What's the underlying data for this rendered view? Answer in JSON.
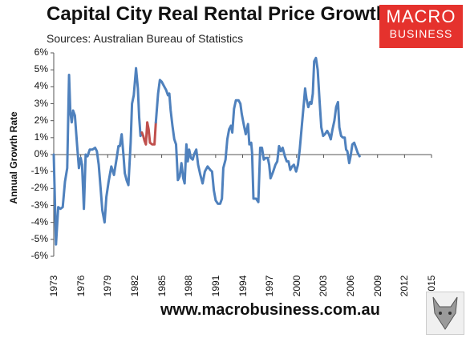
{
  "header": {
    "title": "Capital City Real Rental Price Growth",
    "subtitle": "Sources: Australian Bureau of Statistics"
  },
  "logo": {
    "line1": "MACRO",
    "line2": "BUSINESS"
  },
  "footer": {
    "url": "www.macrobusiness.com.au"
  },
  "colors": {
    "series": "#4f81bd",
    "highlight": "#c0504d",
    "brand": "#e5322d"
  },
  "chart_data": {
    "type": "line",
    "ylabel": "Annual Growth Rate",
    "xlabel": "",
    "xlim": [
      1973,
      2015
    ],
    "ylim": [
      -6,
      6
    ],
    "grid": false,
    "ytick_labels": [
      "6%",
      "5%",
      "4%",
      "3%",
      "2%",
      "1%",
      "0%",
      "-1%",
      "-2%",
      "-3%",
      "-4%",
      "-5%",
      "-6%"
    ],
    "yticks": [
      6,
      5,
      4,
      3,
      2,
      1,
      0,
      -1,
      -2,
      -3,
      -4,
      -5,
      -6
    ],
    "xtick_labels": [
      "1973",
      "1976",
      "1979",
      "1982",
      "1985",
      "1988",
      "1991",
      "1994",
      "1997",
      "2000",
      "2003",
      "2006",
      "2009",
      "2012",
      "2015"
    ],
    "xticks": [
      1973,
      1976,
      1979,
      1982,
      1985,
      1988,
      1991,
      1994,
      1997,
      2000,
      2003,
      2006,
      2009,
      2012,
      2015
    ],
    "series": [
      {
        "color": "#4f81bd",
        "points": [
          [
            1973.0,
            0.0
          ],
          [
            1973.25,
            -5.3
          ],
          [
            1973.5,
            -3.1
          ],
          [
            1973.75,
            -3.2
          ],
          [
            1974.0,
            -3.1
          ],
          [
            1974.25,
            -1.6
          ],
          [
            1974.5,
            -0.8
          ],
          [
            1974.7,
            4.7
          ],
          [
            1974.85,
            2.5
          ],
          [
            1975.0,
            1.9
          ],
          [
            1975.15,
            2.6
          ],
          [
            1975.35,
            2.3
          ],
          [
            1975.6,
            0.5
          ],
          [
            1975.8,
            -0.8
          ],
          [
            1976.0,
            -0.2
          ],
          [
            1976.15,
            -0.6
          ],
          [
            1976.35,
            -3.2
          ],
          [
            1976.55,
            0.0
          ],
          [
            1976.75,
            -0.1
          ],
          [
            1977.0,
            0.3
          ],
          [
            1977.3,
            0.3
          ],
          [
            1977.6,
            0.4
          ],
          [
            1977.8,
            0.2
          ],
          [
            1978.0,
            -0.6
          ],
          [
            1978.2,
            -1.9
          ],
          [
            1978.4,
            -3.3
          ],
          [
            1978.65,
            -4.0
          ],
          [
            1978.85,
            -2.5
          ],
          [
            1979.1,
            -1.6
          ],
          [
            1979.4,
            -0.7
          ],
          [
            1979.7,
            -1.2
          ],
          [
            1980.0,
            -0.2
          ],
          [
            1980.2,
            0.5
          ],
          [
            1980.35,
            0.5
          ],
          [
            1980.55,
            1.2
          ],
          [
            1980.75,
            0.0
          ],
          [
            1980.9,
            -1.1
          ],
          [
            1981.1,
            -1.5
          ],
          [
            1981.3,
            -1.8
          ],
          [
            1981.55,
            0.7
          ],
          [
            1981.7,
            3.0
          ],
          [
            1981.9,
            3.5
          ],
          [
            1982.15,
            5.1
          ],
          [
            1982.35,
            3.9
          ],
          [
            1982.5,
            2.2
          ],
          [
            1982.65,
            1.1
          ],
          [
            1982.8,
            1.3
          ]
        ]
      },
      {
        "color": "#c0504d",
        "points": [
          [
            1982.8,
            1.3
          ],
          [
            1982.95,
            1.1
          ],
          [
            1983.1,
            0.8
          ],
          [
            1983.25,
            0.6
          ],
          [
            1983.4,
            1.9
          ],
          [
            1983.55,
            1.5
          ],
          [
            1983.7,
            0.7
          ],
          [
            1983.95,
            0.6
          ],
          [
            1984.2,
            0.6
          ],
          [
            1984.35,
            1.9
          ]
        ]
      },
      {
        "color": "#4f81bd",
        "points": [
          [
            1984.35,
            1.9
          ],
          [
            1984.6,
            3.6
          ],
          [
            1984.8,
            4.4
          ],
          [
            1985.0,
            4.3
          ],
          [
            1985.3,
            4.0
          ],
          [
            1985.5,
            3.8
          ],
          [
            1985.7,
            3.5
          ],
          [
            1985.85,
            3.6
          ],
          [
            1986.0,
            2.6
          ],
          [
            1986.2,
            1.7
          ],
          [
            1986.4,
            0.9
          ],
          [
            1986.6,
            0.6
          ],
          [
            1986.8,
            -1.5
          ],
          [
            1987.0,
            -1.3
          ],
          [
            1987.2,
            -0.5
          ],
          [
            1987.4,
            -1.4
          ],
          [
            1987.55,
            -1.7
          ],
          [
            1987.75,
            0.6
          ],
          [
            1987.9,
            -0.4
          ],
          [
            1988.05,
            0.3
          ],
          [
            1988.25,
            -0.2
          ],
          [
            1988.45,
            -0.3
          ],
          [
            1988.6,
            0.0
          ],
          [
            1988.85,
            0.3
          ],
          [
            1989.05,
            -0.6
          ],
          [
            1989.3,
            -1.2
          ],
          [
            1989.55,
            -1.7
          ],
          [
            1989.8,
            -1.0
          ],
          [
            1990.1,
            -0.7
          ],
          [
            1990.4,
            -0.9
          ],
          [
            1990.6,
            -1.0
          ],
          [
            1990.8,
            -2.1
          ],
          [
            1991.0,
            -2.7
          ],
          [
            1991.25,
            -2.9
          ],
          [
            1991.5,
            -2.9
          ],
          [
            1991.7,
            -2.6
          ],
          [
            1991.85,
            -0.8
          ],
          [
            1992.1,
            -0.3
          ],
          [
            1992.3,
            0.9
          ],
          [
            1992.5,
            1.5
          ],
          [
            1992.7,
            1.7
          ],
          [
            1992.85,
            1.3
          ],
          [
            1993.05,
            2.7
          ],
          [
            1993.25,
            3.2
          ],
          [
            1993.55,
            3.2
          ],
          [
            1993.75,
            3.0
          ],
          [
            1993.9,
            2.4
          ],
          [
            1994.15,
            1.7
          ],
          [
            1994.35,
            1.2
          ],
          [
            1994.6,
            1.8
          ],
          [
            1994.75,
            0.6
          ],
          [
            1994.95,
            0.7
          ],
          [
            1995.05,
            0.1
          ],
          [
            1995.2,
            -2.6
          ],
          [
            1995.5,
            -2.6
          ],
          [
            1995.75,
            -2.8
          ],
          [
            1995.95,
            0.4
          ],
          [
            1996.15,
            0.4
          ],
          [
            1996.35,
            -0.3
          ],
          [
            1996.55,
            -0.2
          ],
          [
            1996.8,
            -0.2
          ],
          [
            1996.95,
            -0.6
          ],
          [
            1997.1,
            -1.4
          ],
          [
            1997.4,
            -1.0
          ],
          [
            1997.65,
            -0.6
          ],
          [
            1997.85,
            -0.4
          ],
          [
            1998.05,
            0.5
          ],
          [
            1998.25,
            0.2
          ],
          [
            1998.45,
            0.4
          ],
          [
            1998.7,
            -0.1
          ],
          [
            1998.9,
            -0.4
          ],
          [
            1999.1,
            -0.4
          ],
          [
            1999.3,
            -0.9
          ],
          [
            1999.5,
            -0.7
          ],
          [
            1999.7,
            -0.6
          ],
          [
            1999.95,
            -1.0
          ],
          [
            2000.15,
            -0.6
          ],
          [
            2000.35,
            0.3
          ],
          [
            2000.6,
            1.8
          ],
          [
            2000.8,
            3.0
          ],
          [
            2000.95,
            3.9
          ],
          [
            2001.1,
            3.3
          ],
          [
            2001.3,
            2.8
          ],
          [
            2001.5,
            3.1
          ],
          [
            2001.65,
            3.0
          ],
          [
            2001.8,
            3.6
          ],
          [
            2001.95,
            5.5
          ],
          [
            2002.15,
            5.7
          ],
          [
            2002.35,
            5.0
          ],
          [
            2002.55,
            3.2
          ],
          [
            2002.75,
            1.6
          ],
          [
            2002.95,
            1.1
          ],
          [
            2003.15,
            1.2
          ],
          [
            2003.4,
            1.4
          ],
          [
            2003.6,
            1.2
          ],
          [
            2003.8,
            0.9
          ],
          [
            2004.0,
            1.5
          ],
          [
            2004.2,
            2.0
          ],
          [
            2004.4,
            2.8
          ],
          [
            2004.6,
            3.1
          ],
          [
            2004.75,
            1.6
          ],
          [
            2004.95,
            1.1
          ],
          [
            2005.15,
            1.0
          ],
          [
            2005.35,
            1.0
          ],
          [
            2005.5,
            0.3
          ],
          [
            2005.65,
            0.2
          ],
          [
            2005.85,
            -0.5
          ],
          [
            2006.0,
            -0.1
          ],
          [
            2006.2,
            0.6
          ],
          [
            2006.4,
            0.7
          ],
          [
            2006.6,
            0.4
          ],
          [
            2006.8,
            0.1
          ],
          [
            2007.0,
            -0.1
          ]
        ]
      }
    ]
  }
}
